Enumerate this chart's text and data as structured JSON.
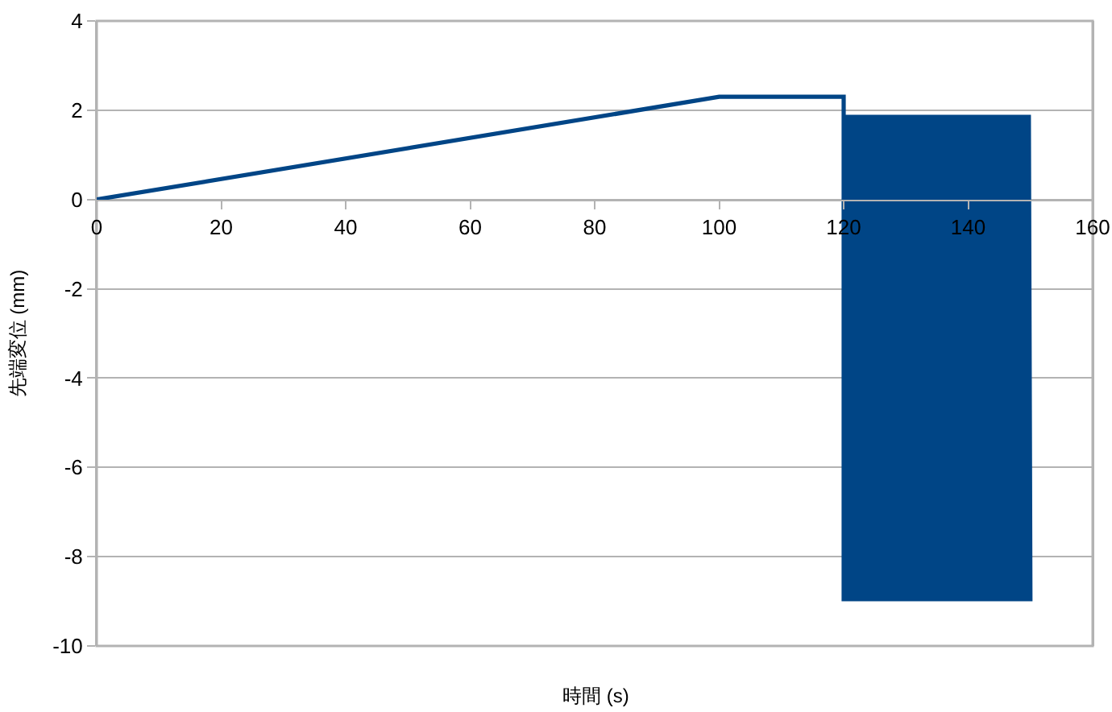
{
  "chart_data": {
    "type": "line",
    "xlabel": "時間 (s)",
    "ylabel": "先端変位 (mm)",
    "color": "#004586",
    "x": [
      0,
      100,
      120,
      120,
      120.25,
      120.5,
      120.75,
      121,
      121.25,
      121.5,
      121.75,
      122,
      122.25,
      122.5,
      122.75,
      123,
      123.25,
      123.5,
      123.75,
      124,
      124.25,
      124.5,
      124.75,
      125,
      125.25,
      125.5,
      125.75,
      126,
      126.25,
      126.5,
      126.75,
      127,
      127.25,
      127.5,
      127.75,
      128,
      128.25,
      128.5,
      128.75,
      129,
      129.25,
      129.5,
      129.75,
      130,
      130.25,
      130.5,
      130.75,
      131,
      131.25,
      131.5,
      131.75,
      132,
      132.25,
      132.5,
      132.75,
      133,
      133.25,
      133.5,
      133.75,
      134,
      134.25,
      134.5,
      134.75,
      135,
      135.25,
      135.5,
      135.75,
      136,
      136.25,
      136.5,
      136.75,
      137,
      137.25,
      137.5,
      137.75,
      138,
      138.25,
      138.5,
      138.75,
      139,
      139.25,
      139.5,
      139.75,
      140,
      140.25,
      140.5,
      140.75,
      141,
      141.25,
      141.5,
      141.75,
      142,
      142.25,
      142.5,
      142.75,
      143,
      143.25,
      143.5,
      143.75,
      144,
      144.25,
      144.5,
      144.75,
      145,
      145.25,
      145.5,
      145.75,
      146,
      146.25,
      146.5,
      146.75,
      147,
      147.25,
      147.5,
      147.75,
      148,
      148.25,
      148.5,
      148.75,
      149,
      149.25,
      149.5,
      149.75,
      150
    ],
    "values": [
      0,
      2.3,
      2.3,
      -9.0,
      1.9,
      -9.0,
      1.9,
      -9.0,
      1.9,
      -9.0,
      1.9,
      -9.0,
      1.9,
      -9.0,
      1.9,
      -9.0,
      1.9,
      -9.0,
      1.9,
      -9.0,
      1.9,
      -9.0,
      1.9,
      -9.0,
      1.9,
      -9.0,
      1.9,
      -9.0,
      1.9,
      -9.0,
      1.9,
      -9.0,
      1.9,
      -9.0,
      1.9,
      -9.0,
      1.9,
      -9.0,
      1.9,
      -9.0,
      1.9,
      -9.0,
      1.9,
      -9.0,
      1.9,
      -9.0,
      1.9,
      -9.0,
      1.9,
      -9.0,
      1.9,
      -9.0,
      1.9,
      -9.0,
      1.9,
      -9.0,
      1.9,
      -9.0,
      1.9,
      -9.0,
      1.9,
      -9.0,
      1.9,
      -9.0,
      1.9,
      -9.0,
      1.9,
      -9.0,
      1.9,
      -9.0,
      1.9,
      -9.0,
      1.9,
      -9.0,
      1.9,
      -9.0,
      1.9,
      -9.0,
      1.9,
      -9.0,
      1.9,
      -9.0,
      1.9,
      -9.0,
      1.9,
      -9.0,
      1.9,
      -9.0,
      1.9,
      -9.0,
      1.9,
      -9.0,
      1.9,
      -9.0,
      1.9,
      -9.0,
      1.9,
      -9.0,
      1.9,
      -9.0,
      1.9,
      -9.0,
      1.9,
      -9.0,
      1.9,
      -9.0,
      1.9,
      -9.0,
      1.9,
      -9.0,
      1.9,
      -9.0,
      1.9,
      -9.0,
      1.9,
      -9.0,
      1.9,
      -9.0,
      1.9,
      -9.0,
      1.9,
      -9.0,
      1.9,
      -9.0
    ],
    "xlim": [
      0,
      160
    ],
    "xticks": [
      0,
      20,
      40,
      60,
      80,
      100,
      120,
      140,
      160
    ],
    "ylim": [
      -10,
      4
    ],
    "yticks": [
      -10,
      -8,
      -6,
      -4,
      -2,
      0,
      2,
      4
    ],
    "grid": "y"
  }
}
